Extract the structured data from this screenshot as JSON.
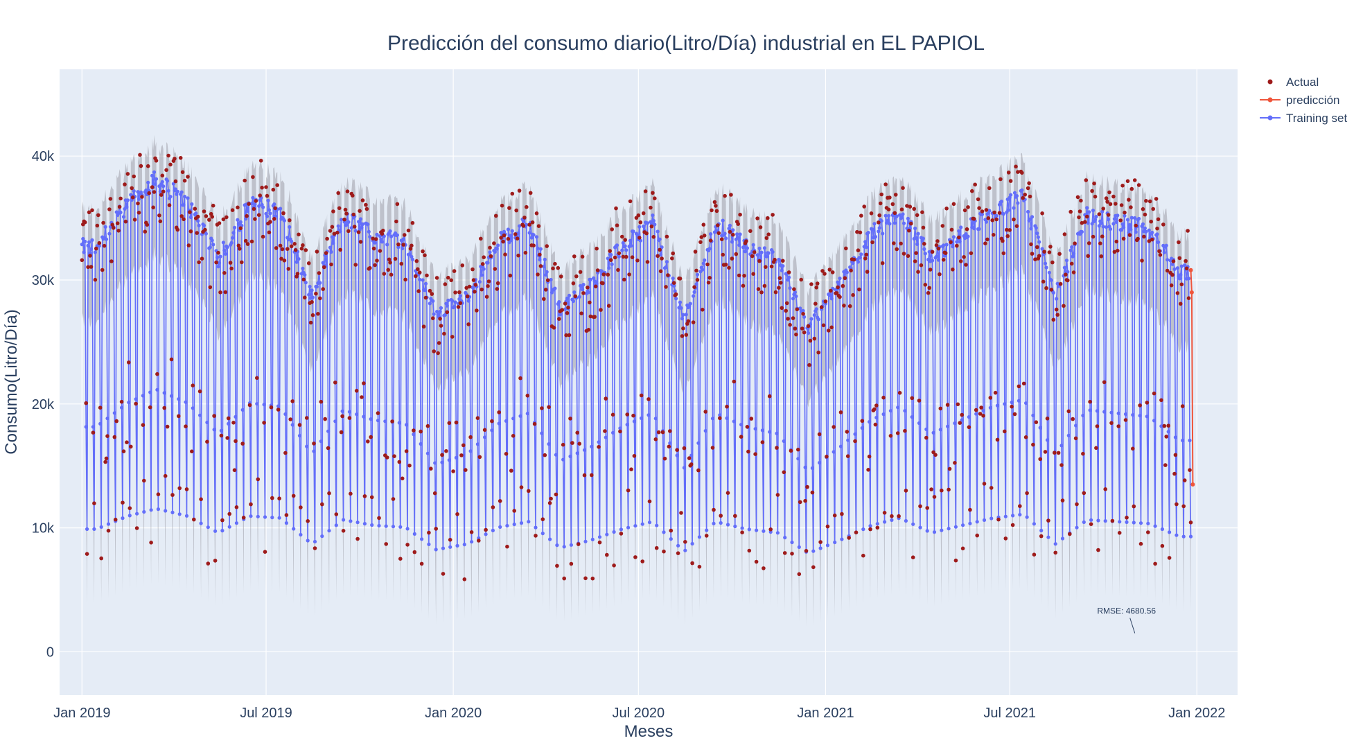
{
  "chart_data": {
    "type": "line",
    "title": "Predicción del consumo diario(Litro/Día) industrial en EL PAPIOL",
    "xlabel": "Meses",
    "ylabel": "Consumo(Litro/Día)",
    "xlim": [
      "2018-12-10",
      "2022-02-10"
    ],
    "ylim": [
      -3500,
      47000
    ],
    "x_ticks": [
      {
        "date": "2019-01-01",
        "label": "Jan 2019"
      },
      {
        "date": "2019-07-01",
        "label": "Jul 2019"
      },
      {
        "date": "2020-01-01",
        "label": "Jan 2020"
      },
      {
        "date": "2020-07-01",
        "label": "Jul 2020"
      },
      {
        "date": "2021-01-01",
        "label": "Jan 2021"
      },
      {
        "date": "2021-07-01",
        "label": "Jul 2021"
      },
      {
        "date": "2022-01-01",
        "label": "Jan 2022"
      }
    ],
    "y_ticks": [
      {
        "value": 0,
        "label": "0"
      },
      {
        "value": 10000,
        "label": "10k"
      },
      {
        "value": 20000,
        "label": "20k"
      },
      {
        "value": 30000,
        "label": "30k"
      },
      {
        "value": 40000,
        "label": "40k"
      }
    ],
    "grid": true,
    "legend_position": "top-right outside",
    "colors": {
      "plot_bg": "#e5ecf6",
      "grid": "#ffffff",
      "actual": "#9e1b1b",
      "prediction": "#ef553b",
      "training": "#636efa",
      "band": "#8f8f96",
      "text": "#2a3f5f"
    },
    "series": [
      {
        "name": "Actual",
        "mode": "markers",
        "date_range": [
          "2019-01-01",
          "2021-12-26"
        ]
      },
      {
        "name": "predicción",
        "mode": "lines+markers",
        "x": [
          "2021-12-26",
          "2021-12-27",
          "2021-12-28"
        ],
        "values": [
          30800,
          29000,
          13500
        ]
      },
      {
        "name": "Training set",
        "mode": "lines+markers",
        "date_range": [
          "2019-01-01",
          "2021-12-26"
        ]
      }
    ],
    "weekday_profile": {
      "description": "Daily values follow a weekly cycle; weekday level varies by season, Saturday and Sunday are low.",
      "weekday_envelope_by_month": [
        {
          "month": "2019-01",
          "value": 33000
        },
        {
          "month": "2019-02",
          "value": 36500
        },
        {
          "month": "2019-03",
          "value": 38500
        },
        {
          "month": "2019-04",
          "value": 36500
        },
        {
          "month": "2019-05",
          "value": 32000
        },
        {
          "month": "2019-06",
          "value": 36500
        },
        {
          "month": "2019-07",
          "value": 36000
        },
        {
          "month": "2019-08",
          "value": 29000
        },
        {
          "month": "2019-09",
          "value": 35500
        },
        {
          "month": "2019-10",
          "value": 34000
        },
        {
          "month": "2019-11",
          "value": 33500
        },
        {
          "month": "2019-12",
          "value": 27500
        },
        {
          "month": "2020-01",
          "value": 29000
        },
        {
          "month": "2020-02",
          "value": 33500
        },
        {
          "month": "2020-03",
          "value": 35000
        },
        {
          "month": "2020-04",
          "value": 28000
        },
        {
          "month": "2020-05",
          "value": 30000
        },
        {
          "month": "2020-06",
          "value": 33000
        },
        {
          "month": "2020-07",
          "value": 35000
        },
        {
          "month": "2020-08",
          "value": 27000
        },
        {
          "month": "2020-09",
          "value": 35000
        },
        {
          "month": "2020-10",
          "value": 33000
        },
        {
          "month": "2020-11",
          "value": 32000
        },
        {
          "month": "2020-12",
          "value": 26500
        },
        {
          "month": "2021-01",
          "value": 30000
        },
        {
          "month": "2021-02",
          "value": 34000
        },
        {
          "month": "2021-03",
          "value": 36000
        },
        {
          "month": "2021-04",
          "value": 32000
        },
        {
          "month": "2021-05",
          "value": 34000
        },
        {
          "month": "2021-06",
          "value": 36000
        },
        {
          "month": "2021-07",
          "value": 37000
        },
        {
          "month": "2021-08",
          "value": 29000
        },
        {
          "month": "2021-09",
          "value": 35500
        },
        {
          "month": "2021-10",
          "value": 35000
        },
        {
          "month": "2021-11",
          "value": 34500
        },
        {
          "month": "2021-12",
          "value": 31000
        }
      ],
      "saturday_fraction": 0.55,
      "sunday_fraction": 0.3
    },
    "annotations": [
      {
        "text": "RMSE: 4680.56",
        "date": "2021-11-01",
        "value": 1500
      }
    ]
  }
}
